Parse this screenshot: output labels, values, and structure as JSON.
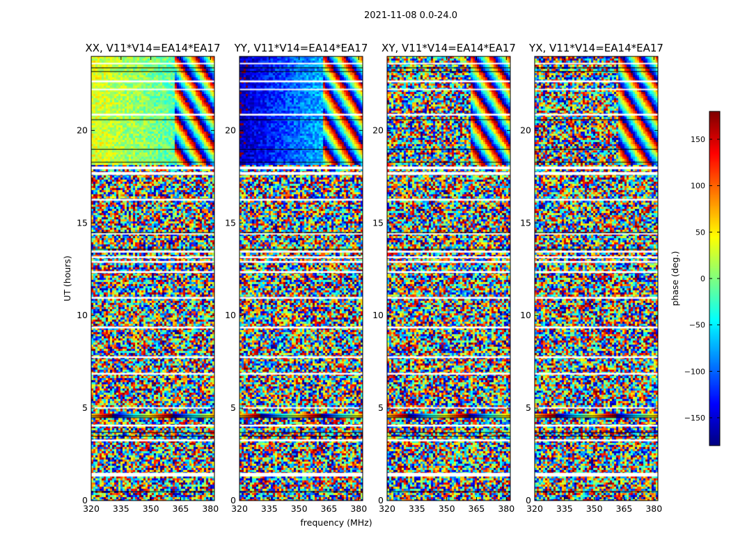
{
  "figure": {
    "suptitle": "2021-11-08 0.0-24.0"
  },
  "chart_data": {
    "type": "heatmap",
    "xlabel": "frequency (MHz)",
    "ylabel": "UT (hours)",
    "xlim": [
      320,
      382
    ],
    "ylim": [
      0,
      24
    ],
    "x_ticks": [
      320,
      335,
      350,
      365,
      380
    ],
    "y_ticks": [
      0,
      5,
      10,
      15,
      20
    ],
    "colorbar": {
      "label": "phase (deg.)",
      "colormap": "jet",
      "range": [
        -180,
        180
      ],
      "ticks": [
        150,
        100,
        50,
        0,
        -50,
        -100,
        -150
      ],
      "tick_labels": [
        "150",
        "100",
        "50",
        "0",
        "−50",
        "−100",
        "−150"
      ]
    },
    "panels": [
      {
        "title": "XX, V11*V14=EA14*EA17",
        "mode": "coherent",
        "offset": 35
      },
      {
        "title": "YY, V11*V14=EA14*EA17",
        "mode": "coherent",
        "offset": -160
      },
      {
        "title": "XY, V11*V14=EA14*EA17",
        "mode": "noise",
        "offset": 0
      },
      {
        "title": "YX, V11*V14=EA14*EA17",
        "mode": "noise",
        "offset": 0
      }
    ],
    "flagged_ut_bands": [
      [
        1.3,
        1.5
      ],
      [
        3.2,
        3.3
      ],
      [
        4.0,
        4.1
      ],
      [
        5.0,
        5.05
      ],
      [
        6.8,
        6.9
      ],
      [
        7.7,
        7.8
      ],
      [
        9.3,
        9.4
      ],
      [
        10.9,
        11.0
      ],
      [
        12.3,
        12.4
      ],
      [
        12.85,
        12.95
      ],
      [
        13.1,
        13.2
      ],
      [
        13.4,
        13.5
      ],
      [
        14.4,
        14.45
      ],
      [
        16.2,
        16.3
      ],
      [
        17.6,
        17.75
      ],
      [
        17.9,
        18.05
      ],
      [
        20.8,
        20.9
      ],
      [
        22.2,
        22.25
      ],
      [
        22.6,
        22.7
      ],
      [
        23.6,
        23.65
      ]
    ],
    "black_ut_lines": [
      0.5,
      3.5,
      3.7,
      4.5,
      4.6,
      13.6,
      14.5,
      18.3,
      19.0,
      20.6,
      23.2,
      23.4
    ]
  }
}
